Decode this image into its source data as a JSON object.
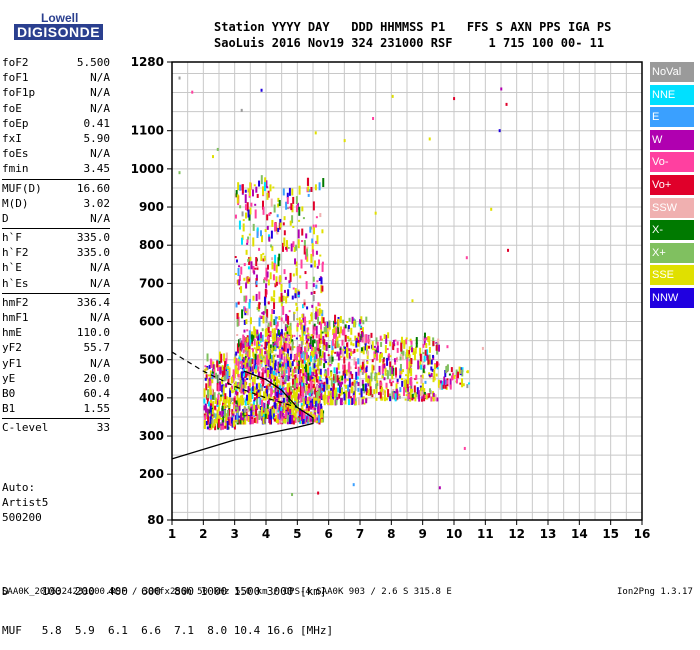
{
  "header": {
    "line1": "Station YYYY DAY   DDD HHMMSS P1   FFS S AXN PPS IGA PS",
    "line2": "SaoLuis 2016 Nov19 324 231000 RSF     1 715 100 00- 11"
  },
  "logo": {
    "top": "Lowell",
    "bottom": "DIGISONDE"
  },
  "params_groups": [
    [
      [
        "foF2",
        "5.500"
      ],
      [
        "foF1",
        "N/A"
      ],
      [
        "foF1p",
        "N/A"
      ],
      [
        "foE",
        "N/A"
      ],
      [
        "foEp",
        "0.41"
      ],
      [
        "fxI",
        "5.90"
      ],
      [
        "foEs",
        "N/A"
      ],
      [
        "fmin",
        "3.45"
      ]
    ],
    [
      [
        "MUF(D)",
        "16.60"
      ],
      [
        "M(D)",
        "3.02"
      ],
      [
        "D",
        "N/A"
      ]
    ],
    [
      [
        "h`F",
        "335.0"
      ],
      [
        "h`F2",
        "335.0"
      ],
      [
        "h`E",
        "N/A"
      ],
      [
        "h`Es",
        "N/A"
      ]
    ],
    [
      [
        "hmF2",
        "336.4"
      ],
      [
        "hmF1",
        "N/A"
      ],
      [
        "hmE",
        "110.0"
      ],
      [
        "yF2",
        "55.7"
      ],
      [
        "yF1",
        "N/A"
      ],
      [
        "yE",
        "20.0"
      ],
      [
        "B0",
        "60.4"
      ],
      [
        "B1",
        "1.55"
      ]
    ],
    [
      [
        "C-level",
        "33"
      ]
    ]
  ],
  "auto": [
    "Auto:",
    "Artist5",
    "500200"
  ],
  "legend": [
    {
      "label": "NoVal",
      "color": "#9a9a9a"
    },
    {
      "label": "NNE",
      "color": "#00e0ff"
    },
    {
      "label": "E",
      "color": "#3aa0ff"
    },
    {
      "label": "W",
      "color": "#b000b0"
    },
    {
      "label": "Vo-",
      "color": "#ff40a0"
    },
    {
      "label": "Vo+",
      "color": "#e0002a"
    },
    {
      "label": "SSW",
      "color": "#f0b0b0"
    },
    {
      "label": "X-",
      "color": "#007a00"
    },
    {
      "label": "X+",
      "color": "#80c060"
    },
    {
      "label": "SSE",
      "color": "#e0e000"
    },
    {
      "label": "NNW",
      "color": "#2000e0"
    }
  ],
  "dtable": {
    "d_line": "D     100  200  400  600  800 1000 1500 3000 [km]",
    "muf_line": "MUF   5.8  5.9  6.1  6.6  7.1  8.0 10.4 16.6 [MHz]"
  },
  "footer": "SAA0K_2016324231000.RSF / 300fx256h 50 kHz 5.0 km / DPS-4 SAA0K 903 / 2.6 S 315.8 E",
  "version": "Ion2Png 1.3.17",
  "chart_data": {
    "type": "scatter",
    "xlabel": "",
    "ylabel": "",
    "xlim": [
      1,
      16
    ],
    "ylim": [
      80,
      1280
    ],
    "x_ticks": [
      1,
      2,
      3,
      4,
      5,
      6,
      7,
      8,
      9,
      10,
      11,
      12,
      13,
      14,
      15,
      16
    ],
    "y_ticks": [
      80,
      200,
      300,
      400,
      500,
      600,
      700,
      800,
      900,
      1000,
      1100,
      1280
    ],
    "grid": true,
    "legend_placement": "right",
    "trace_clusters": [
      {
        "x_range": [
          2.0,
          3.0
        ],
        "y_range": [
          315,
          500
        ],
        "density": 260
      },
      {
        "x_range": [
          3.0,
          5.8
        ],
        "y_range": [
          330,
          560
        ],
        "density": 1200
      },
      {
        "x_range": [
          3.0,
          5.8
        ],
        "y_range": [
          560,
          960
        ],
        "density": 420
      },
      {
        "x_range": [
          5.8,
          7.2
        ],
        "y_range": [
          380,
          600
        ],
        "density": 320
      },
      {
        "x_range": [
          7.2,
          9.5
        ],
        "y_range": [
          390,
          560
        ],
        "density": 320
      },
      {
        "x_range": [
          9.5,
          10.6
        ],
        "y_range": [
          420,
          470
        ],
        "density": 40
      }
    ],
    "profile_curve": [
      [
        1,
        240
      ],
      [
        2,
        265
      ],
      [
        3,
        290
      ],
      [
        4,
        306
      ],
      [
        5,
        323
      ],
      [
        5.5,
        333
      ],
      [
        5.5,
        348
      ],
      [
        5,
        375
      ],
      [
        4.5,
        420
      ],
      [
        4,
        448
      ],
      [
        3.3,
        470
      ]
    ],
    "dashed_curve": [
      [
        1,
        520
      ],
      [
        2,
        470
      ],
      [
        3,
        430
      ],
      [
        4,
        400
      ],
      [
        5,
        375
      ]
    ]
  }
}
